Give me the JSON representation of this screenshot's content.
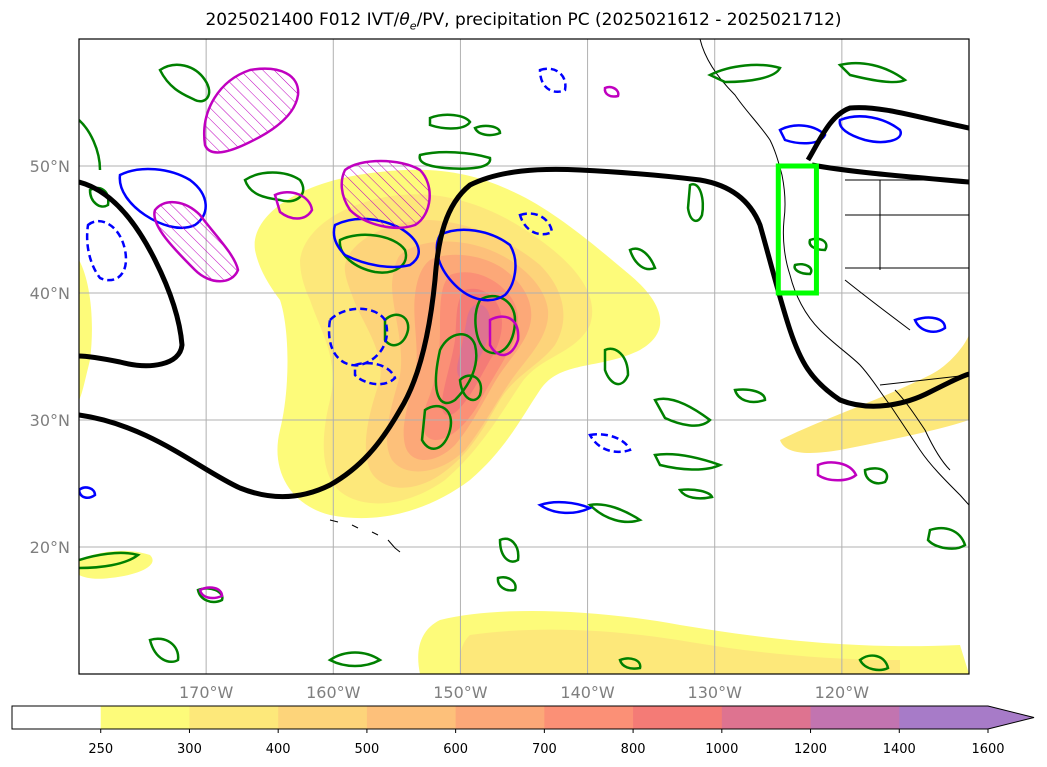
{
  "title": {
    "prefix": "2025021400 F012 IVT/",
    "theta": "θ",
    "theta_sub": "e",
    "suffix": "/PV, precipitation PC (2025021612 - 2025021712)"
  },
  "map": {
    "lon_range": [
      -180,
      -110
    ],
    "lat_range": [
      10,
      60
    ],
    "lon_ticks": [
      {
        "value": -170,
        "label": "170°W"
      },
      {
        "value": -160,
        "label": "160°W"
      },
      {
        "value": -150,
        "label": "150°W"
      },
      {
        "value": -140,
        "label": "140°W"
      },
      {
        "value": -130,
        "label": "130°W"
      },
      {
        "value": -120,
        "label": "120°W"
      }
    ],
    "lat_ticks": [
      {
        "value": 20,
        "label": "20°N"
      },
      {
        "value": 30,
        "label": "30°N"
      },
      {
        "value": 40,
        "label": "40°N"
      },
      {
        "value": 50,
        "label": "50°N"
      }
    ],
    "highlight_box": {
      "lon": [
        -125,
        -122
      ],
      "lat": [
        40,
        50
      ],
      "color": "#00ff00"
    },
    "colors": {
      "pv_contour": "#000000",
      "theta_e_contour": "#008000",
      "precip_contour": "#0000ff",
      "dashed_contour": "#0000ff",
      "hatched_contour": "#c000c0",
      "grid": "#b0b0b0"
    }
  },
  "colorbar": {
    "levels": [
      "250",
      "300",
      "400",
      "500",
      "600",
      "700",
      "800",
      "1000",
      "1200",
      "1400",
      "1600"
    ],
    "colors": [
      "#ffffff",
      "#fdfb7a",
      "#fde87a",
      "#fdd47a",
      "#fdc07a",
      "#fca878",
      "#fb9076",
      "#f47b76",
      "#de7390",
      "#c274b0",
      "#a77bc8"
    ],
    "extend": "max"
  }
}
